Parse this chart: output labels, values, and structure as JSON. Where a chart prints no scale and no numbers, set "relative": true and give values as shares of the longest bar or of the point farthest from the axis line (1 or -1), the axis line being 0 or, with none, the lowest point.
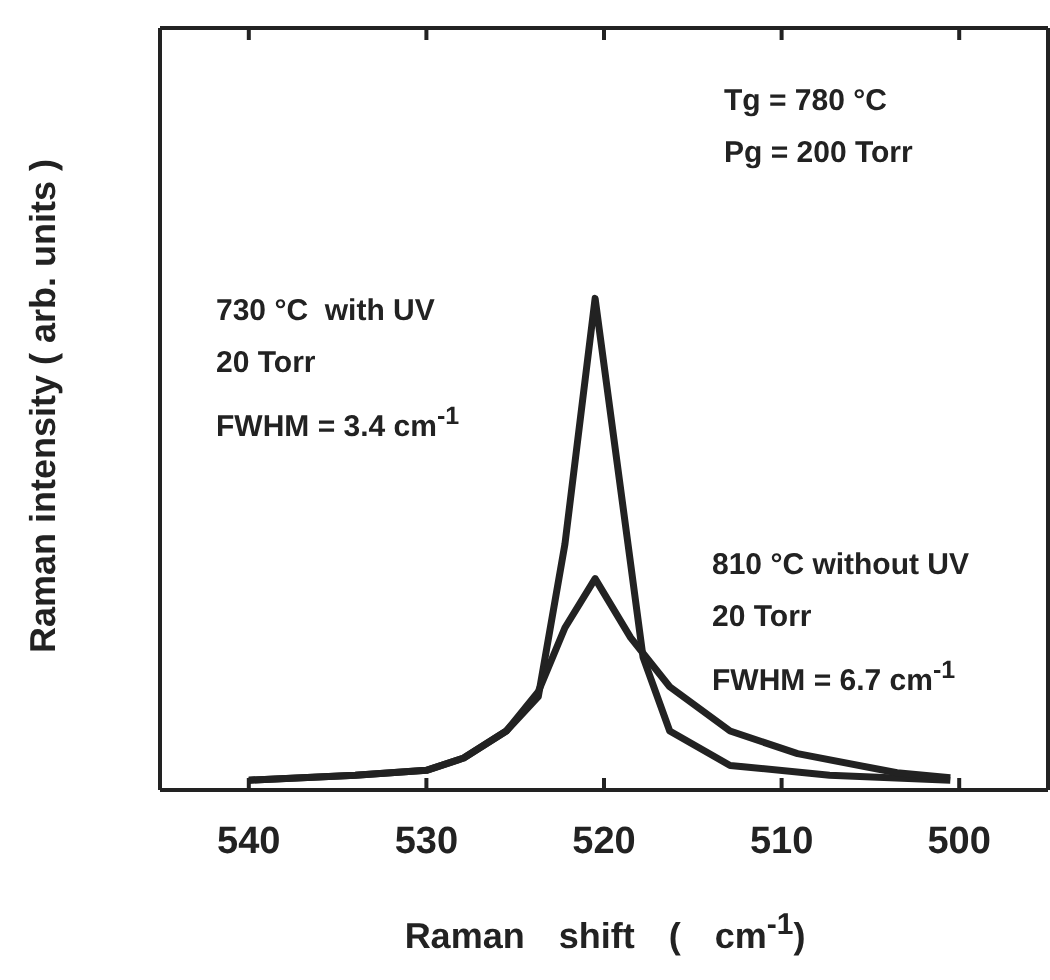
{
  "chart_data": {
    "type": "line",
    "relative": true,
    "xlabel": "Raman shift ( cm$^{-1}$)",
    "ylabel": "Raman intensity ( arb. units )",
    "xlim": [
      545,
      495
    ],
    "xticks": [
      540,
      530,
      520,
      510,
      500
    ],
    "marker": "none",
    "line_style": "solid",
    "annotations": [
      "Tg = 780 °C\nPg = 200 Torr",
      "730 °C  with UV\n20 Torr\nFWHM = 3.4 cm$^{-1}$",
      "810 °C without UV\n20 Torr\nFWHM = 6.7 cm$^{-1}$"
    ],
    "series": [
      {
        "color": "#222222",
        "x": [
          540,
          534,
          530,
          527.9,
          525.5,
          523.7,
          522.2,
          520.5,
          518.5,
          517.8,
          516.3,
          512.9,
          507.3,
          500.5
        ],
        "values": [
          0.02,
          0.03,
          0.04,
          0.065,
          0.12,
          0.19,
          0.5,
          1.0,
          0.46,
          0.27,
          0.12,
          0.05,
          0.03,
          0.02
        ]
      },
      {
        "color": "#222222",
        "x": [
          540,
          534,
          530,
          527.9,
          525.5,
          523.7,
          522.2,
          520.5,
          518.5,
          516.3,
          512.9,
          509.1,
          503.5,
          500.5
        ],
        "values": [
          0.02,
          0.03,
          0.04,
          0.065,
          0.12,
          0.2,
          0.33,
          0.43,
          0.31,
          0.21,
          0.12,
          0.074,
          0.035,
          0.025
        ]
      }
    ]
  }
}
